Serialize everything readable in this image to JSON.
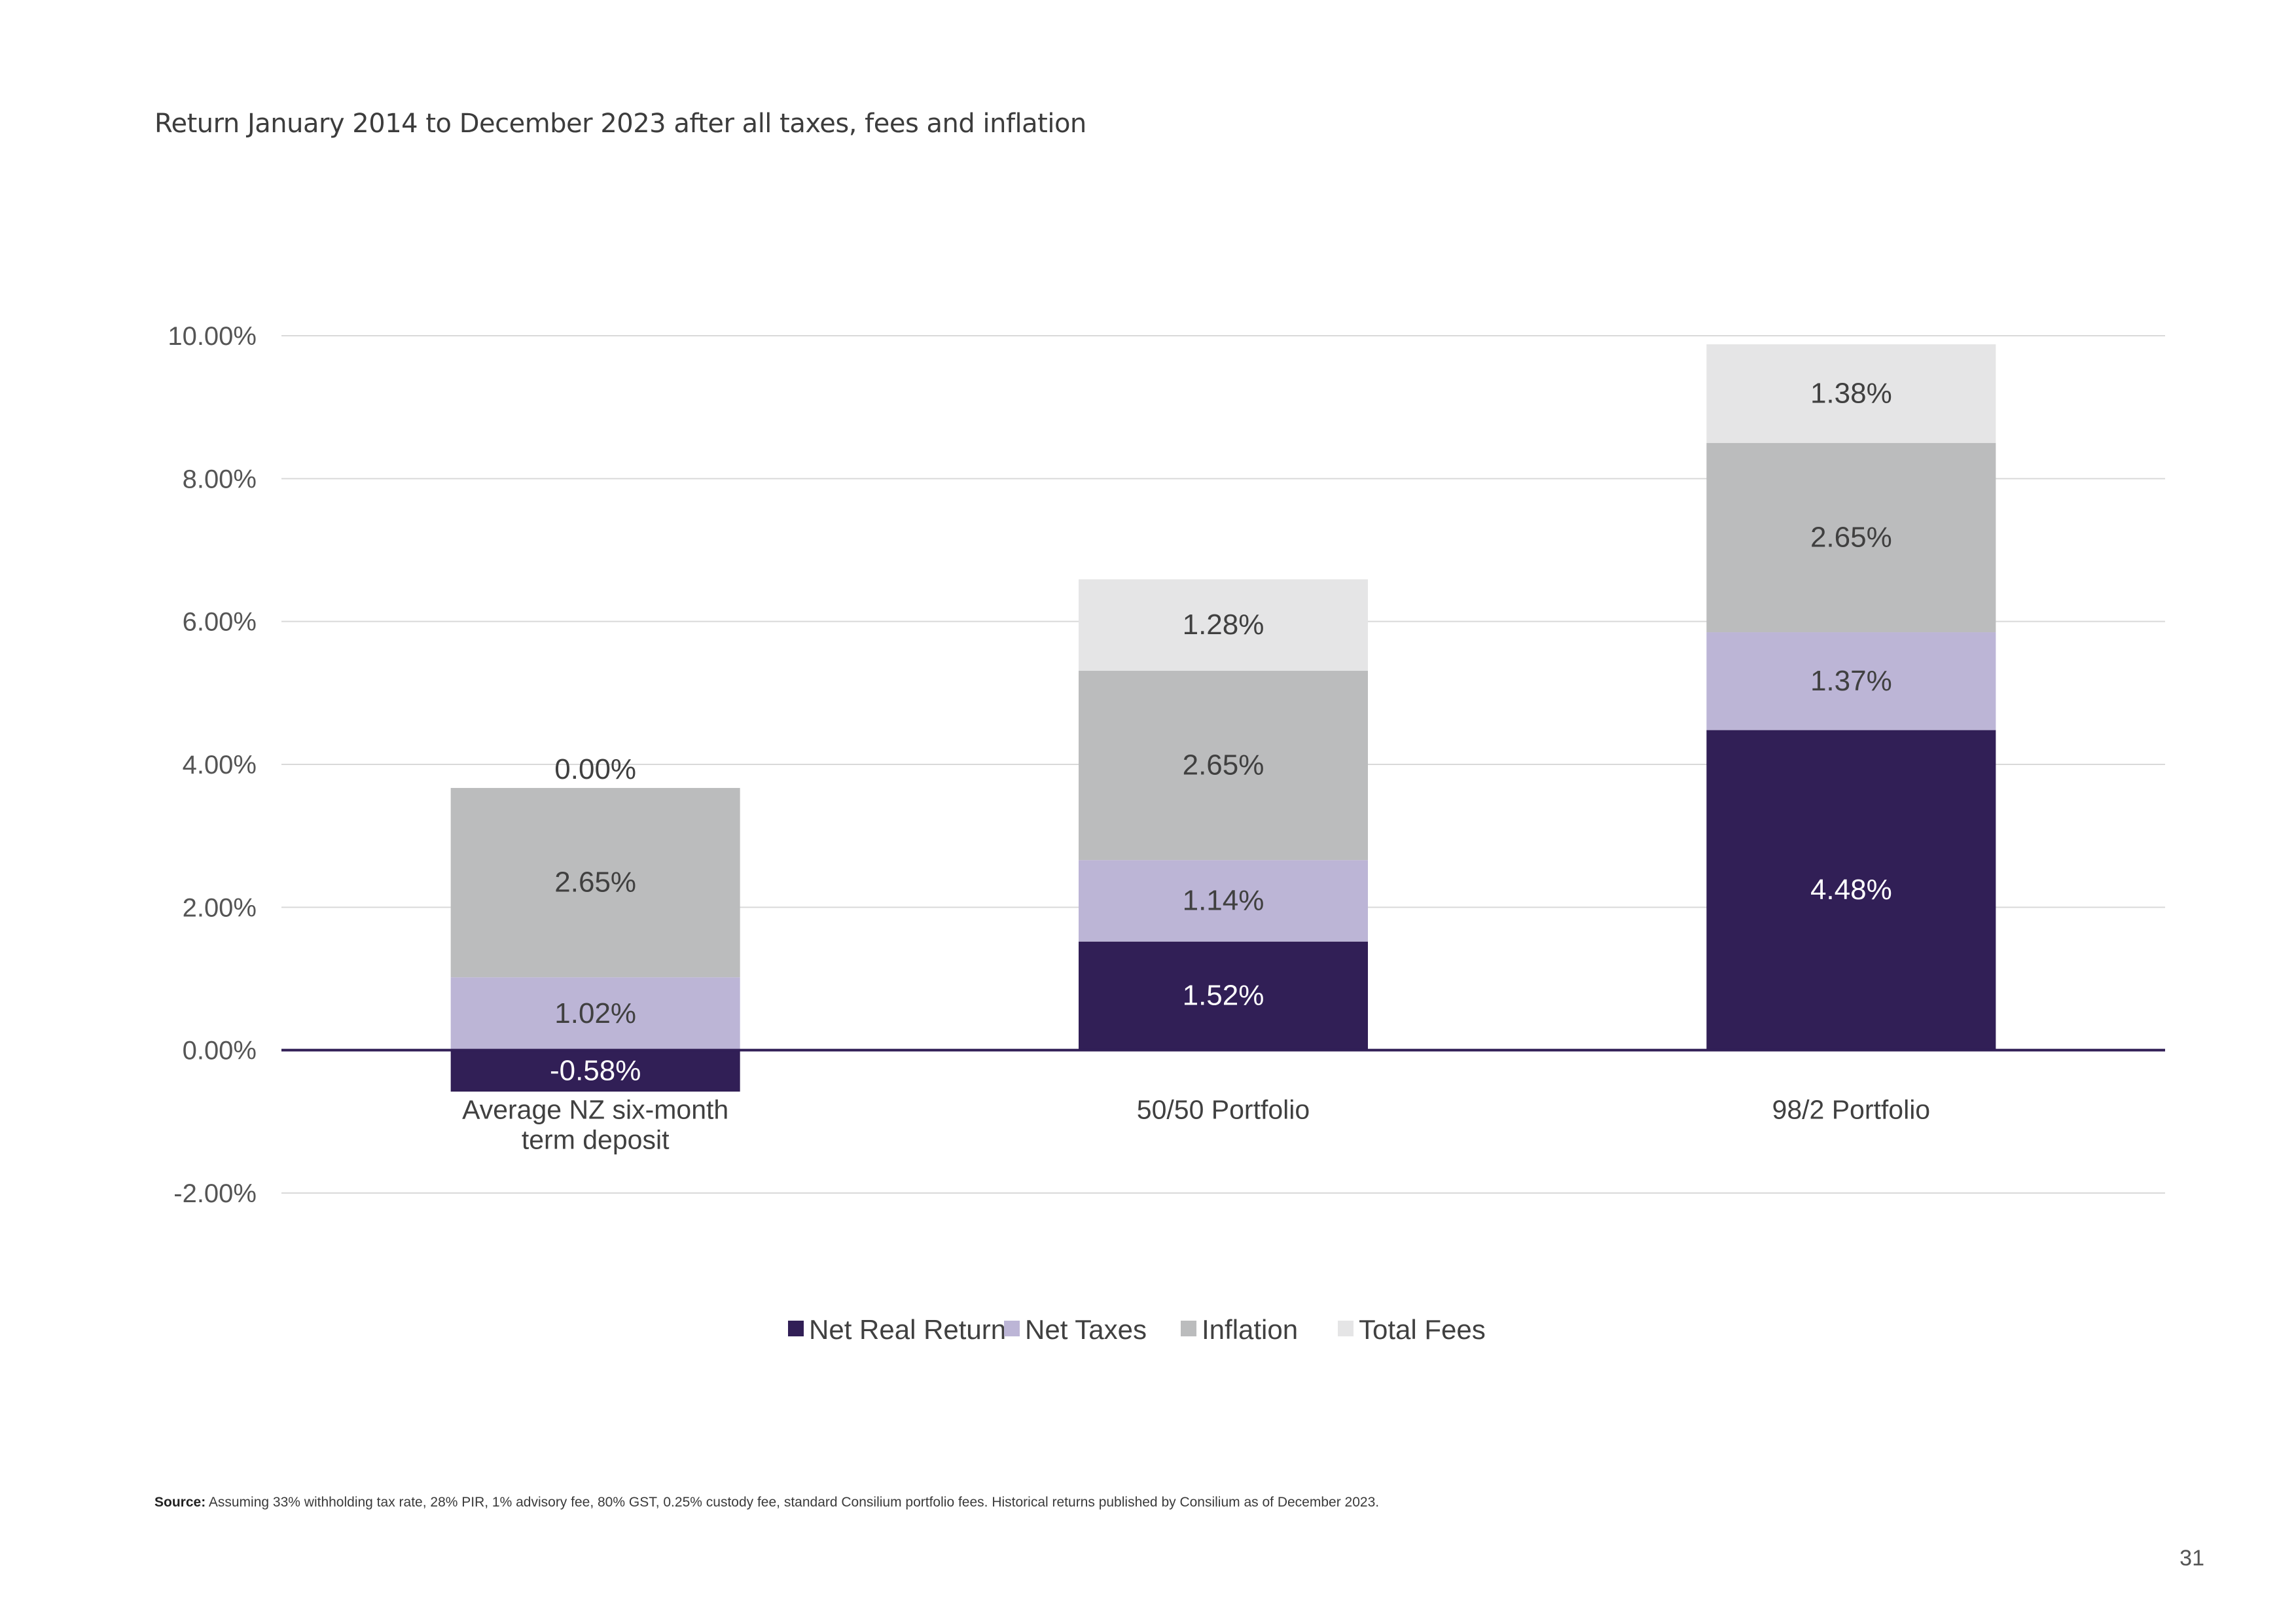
{
  "title": "Return January 2014 to December 2023 after all taxes, fees and inflation",
  "source_label": "Source:",
  "source_text": "Assuming 33% withholding tax rate, 28% PIR, 1% advisory fee, 80% GST, 0.25% custody fee, standard Consilium portfolio fees. Historical returns published by Consilium as of December 2023.",
  "page_number": "31",
  "chart_data": {
    "type": "bar",
    "stacked": true,
    "title": "",
    "xlabel": "",
    "ylabel": "",
    "ylim": [
      -2,
      10
    ],
    "y_ticks": [
      -2,
      0,
      2,
      4,
      6,
      8,
      10
    ],
    "y_tick_labels": [
      "-2.00%",
      "0.00%",
      "2.00%",
      "4.00%",
      "6.00%",
      "8.00%",
      "10.00%"
    ],
    "grid": true,
    "legend_position": "bottom-center",
    "categories": [
      [
        "Average NZ six-month",
        "term deposit"
      ],
      [
        "50/50 Portfolio"
      ],
      [
        "98/2 Portfolio"
      ]
    ],
    "series": [
      {
        "name": "Net Real Return",
        "color": "#311f56",
        "label_color": "#ffffff",
        "values": [
          -0.58,
          1.52,
          4.48
        ],
        "labels": [
          "-0.58%",
          "1.52%",
          "4.48%"
        ]
      },
      {
        "name": "Net Taxes",
        "color": "#bcb5d6",
        "label_color": "#404040",
        "values": [
          1.02,
          1.14,
          1.37
        ],
        "labels": [
          "1.02%",
          "1.14%",
          "1.37%"
        ]
      },
      {
        "name": "Inflation",
        "color": "#bbbcbd",
        "label_color": "#404040",
        "values": [
          2.65,
          2.65,
          2.65
        ],
        "labels": [
          "2.65%",
          "2.65%",
          "2.65%"
        ]
      },
      {
        "name": "Total Fees",
        "color": "#e5e5e6",
        "label_color": "#404040",
        "values": [
          0.0,
          1.28,
          1.38
        ],
        "labels": [
          "0.00%",
          "1.28%",
          "1.38%"
        ]
      }
    ]
  }
}
